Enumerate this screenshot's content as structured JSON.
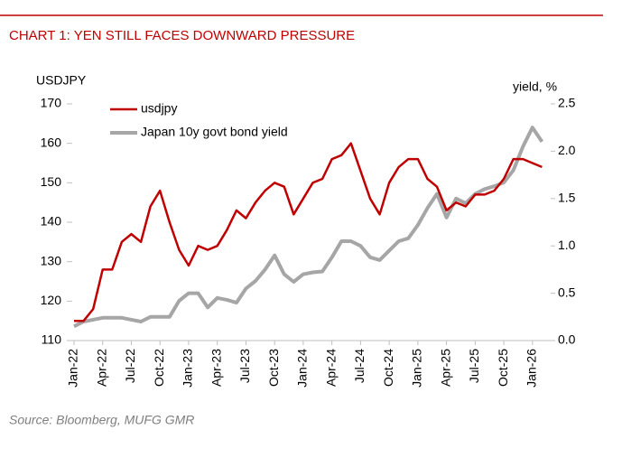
{
  "chart_data": {
    "type": "line",
    "title": "CHART 1: YEN STILL FACES DOWNWARD PRESSURE",
    "y_label": "USDJPY",
    "y2_label": "yield, %",
    "source": "Source: Bloomberg, MUFG GMR",
    "categories": [
      "Jan-22",
      null,
      null,
      "Apr-22",
      null,
      null,
      "Jul-22",
      null,
      null,
      "Oct-22",
      null,
      null,
      "Jan-23",
      null,
      null,
      "Apr-23",
      null,
      null,
      "Jul-23",
      null,
      null,
      "Oct-23",
      null,
      null,
      "Jan-24",
      null,
      null,
      "Apr-24",
      null,
      null,
      "Jul-24",
      null,
      null,
      "Oct-24",
      null,
      null,
      "Jan-25",
      null,
      null,
      "Apr-25",
      null,
      null,
      "Jul-25",
      null,
      null,
      "Oct-25",
      null,
      null,
      "Jan-26",
      null
    ],
    "series": [
      {
        "name": "usdjpy",
        "color": "#c00000",
        "values": [
          115,
          115,
          118,
          128,
          128,
          135,
          137,
          135,
          144,
          148,
          140,
          133,
          129,
          134,
          133,
          134,
          138,
          143,
          141,
          145,
          148,
          150,
          149,
          142,
          146,
          150,
          151,
          156,
          157,
          160,
          153,
          146,
          142,
          150,
          154,
          156,
          156,
          151,
          149,
          143,
          145,
          144,
          147,
          147,
          148,
          151,
          156,
          156,
          155,
          154
        ]
      },
      {
        "name": "Japan 10y govt bond yield",
        "color": "#a6a6a6",
        "axis": "y2",
        "values": [
          0.15,
          0.2,
          0.22,
          0.24,
          0.24,
          0.24,
          0.22,
          0.2,
          0.25,
          0.25,
          0.25,
          0.42,
          0.5,
          0.5,
          0.35,
          0.45,
          0.43,
          0.4,
          0.55,
          0.63,
          0.75,
          0.9,
          0.7,
          0.62,
          0.7,
          0.72,
          0.73,
          0.88,
          1.05,
          1.05,
          1.0,
          0.88,
          0.85,
          0.95,
          1.05,
          1.08,
          1.22,
          1.4,
          1.55,
          1.3,
          1.5,
          1.45,
          1.55,
          1.6,
          1.63,
          1.67,
          1.8,
          2.05,
          2.25,
          2.1
        ]
      }
    ],
    "ylim": [
      110,
      170
    ],
    "yticks": [
      110,
      120,
      130,
      140,
      150,
      160,
      170
    ],
    "y2lim": [
      0,
      2.5
    ],
    "y2ticks": [
      {
        "value": 0,
        "label": "0.0"
      },
      0.5,
      {
        "value": 1,
        "label": "1.0"
      },
      1.5,
      {
        "value": 2,
        "label": "2.0"
      },
      2.5
    ],
    "legend": "upper left"
  }
}
